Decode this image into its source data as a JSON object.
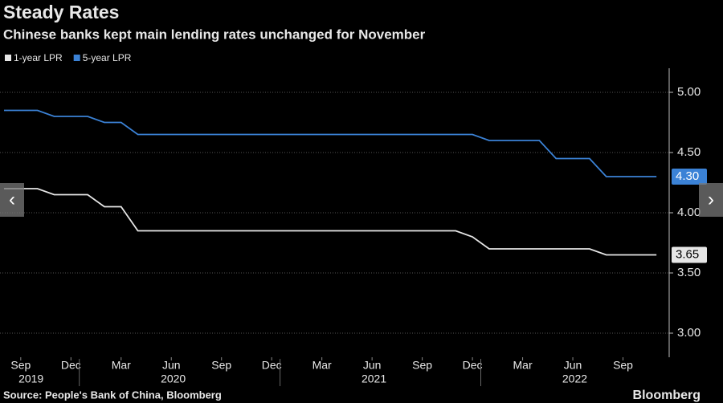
{
  "chart_data": {
    "type": "line",
    "title": "Steady Rates",
    "subtitle": "Chinese banks kept main lending rates unchanged for November",
    "source": "Source: People's Bank of China, Bloomberg",
    "brand": "Bloomberg",
    "x": [
      "2019-08",
      "2019-09",
      "2019-10",
      "2019-11",
      "2019-12",
      "2020-01",
      "2020-02",
      "2020-03",
      "2020-04",
      "2020-05",
      "2020-06",
      "2020-07",
      "2020-08",
      "2020-09",
      "2020-10",
      "2020-11",
      "2020-12",
      "2021-01",
      "2021-02",
      "2021-03",
      "2021-04",
      "2021-05",
      "2021-06",
      "2021-07",
      "2021-08",
      "2021-09",
      "2021-10",
      "2021-11",
      "2021-12",
      "2022-01",
      "2022-02",
      "2022-03",
      "2022-04",
      "2022-05",
      "2022-06",
      "2022-07",
      "2022-08",
      "2022-09",
      "2022-10",
      "2022-11"
    ],
    "series": [
      {
        "name": "1-year LPR",
        "color": "#e6e6e6",
        "values": [
          4.2,
          4.2,
          4.2,
          4.15,
          4.15,
          4.15,
          4.05,
          4.05,
          3.85,
          3.85,
          3.85,
          3.85,
          3.85,
          3.85,
          3.85,
          3.85,
          3.85,
          3.85,
          3.85,
          3.85,
          3.85,
          3.85,
          3.85,
          3.85,
          3.85,
          3.85,
          3.85,
          3.85,
          3.8,
          3.7,
          3.7,
          3.7,
          3.7,
          3.7,
          3.7,
          3.7,
          3.65,
          3.65,
          3.65,
          3.65
        ],
        "value_labels": [
          null,
          null,
          null,
          null,
          null,
          null,
          null,
          null,
          null,
          null,
          null,
          null,
          null,
          null,
          null,
          null,
          null,
          null,
          null,
          null,
          null,
          null,
          null,
          null,
          null,
          null,
          null,
          null,
          null,
          null,
          null,
          null,
          null,
          null,
          null,
          null,
          null,
          null,
          null,
          "3.65"
        ]
      },
      {
        "name": "5-year LPR",
        "color": "#3b82d6",
        "values": [
          4.85,
          4.85,
          4.85,
          4.8,
          4.8,
          4.8,
          4.75,
          4.75,
          4.65,
          4.65,
          4.65,
          4.65,
          4.65,
          4.65,
          4.65,
          4.65,
          4.65,
          4.65,
          4.65,
          4.65,
          4.65,
          4.65,
          4.65,
          4.65,
          4.65,
          4.65,
          4.65,
          4.65,
          4.65,
          4.6,
          4.6,
          4.6,
          4.6,
          4.45,
          4.45,
          4.45,
          4.3,
          4.3,
          4.3,
          4.3
        ],
        "value_labels": [
          null,
          null,
          null,
          null,
          null,
          null,
          null,
          null,
          null,
          null,
          null,
          null,
          null,
          null,
          null,
          null,
          null,
          null,
          null,
          null,
          null,
          null,
          null,
          null,
          null,
          null,
          null,
          null,
          null,
          null,
          null,
          null,
          null,
          null,
          null,
          null,
          null,
          null,
          null,
          "4.30"
        ]
      }
    ],
    "xlim": [
      "2019-08",
      "2022-12"
    ],
    "xticks": [
      {
        "value": "2019-09",
        "label": "Sep"
      },
      {
        "value": "2019-12",
        "label": "Dec"
      },
      {
        "value": "2020-03",
        "label": "Mar"
      },
      {
        "value": "2020-06",
        "label": "Jun"
      },
      {
        "value": "2020-09",
        "label": "Sep"
      },
      {
        "value": "2020-12",
        "label": "Dec"
      },
      {
        "value": "2021-03",
        "label": "Mar"
      },
      {
        "value": "2021-06",
        "label": "Jun"
      },
      {
        "value": "2021-09",
        "label": "Sep"
      },
      {
        "value": "2021-12",
        "label": "Dec"
      },
      {
        "value": "2022-03",
        "label": "Mar"
      },
      {
        "value": "2022-06",
        "label": "Jun"
      },
      {
        "value": "2022-09",
        "label": "Sep"
      }
    ],
    "year_labels": [
      2019,
      2020,
      2021,
      2022
    ],
    "ylim": [
      2.8,
      5.2
    ],
    "yticks": [
      {
        "value": 3,
        "label": "3.00"
      },
      {
        "value": 3.5,
        "label": "3.50"
      },
      {
        "value": 4,
        "label": "4.00"
      },
      {
        "value": 4.5,
        "label": "4.50"
      },
      {
        "value": 5,
        "label": "5.00"
      }
    ],
    "grid": true,
    "y_axis_side": "right",
    "legend": "top-left"
  }
}
